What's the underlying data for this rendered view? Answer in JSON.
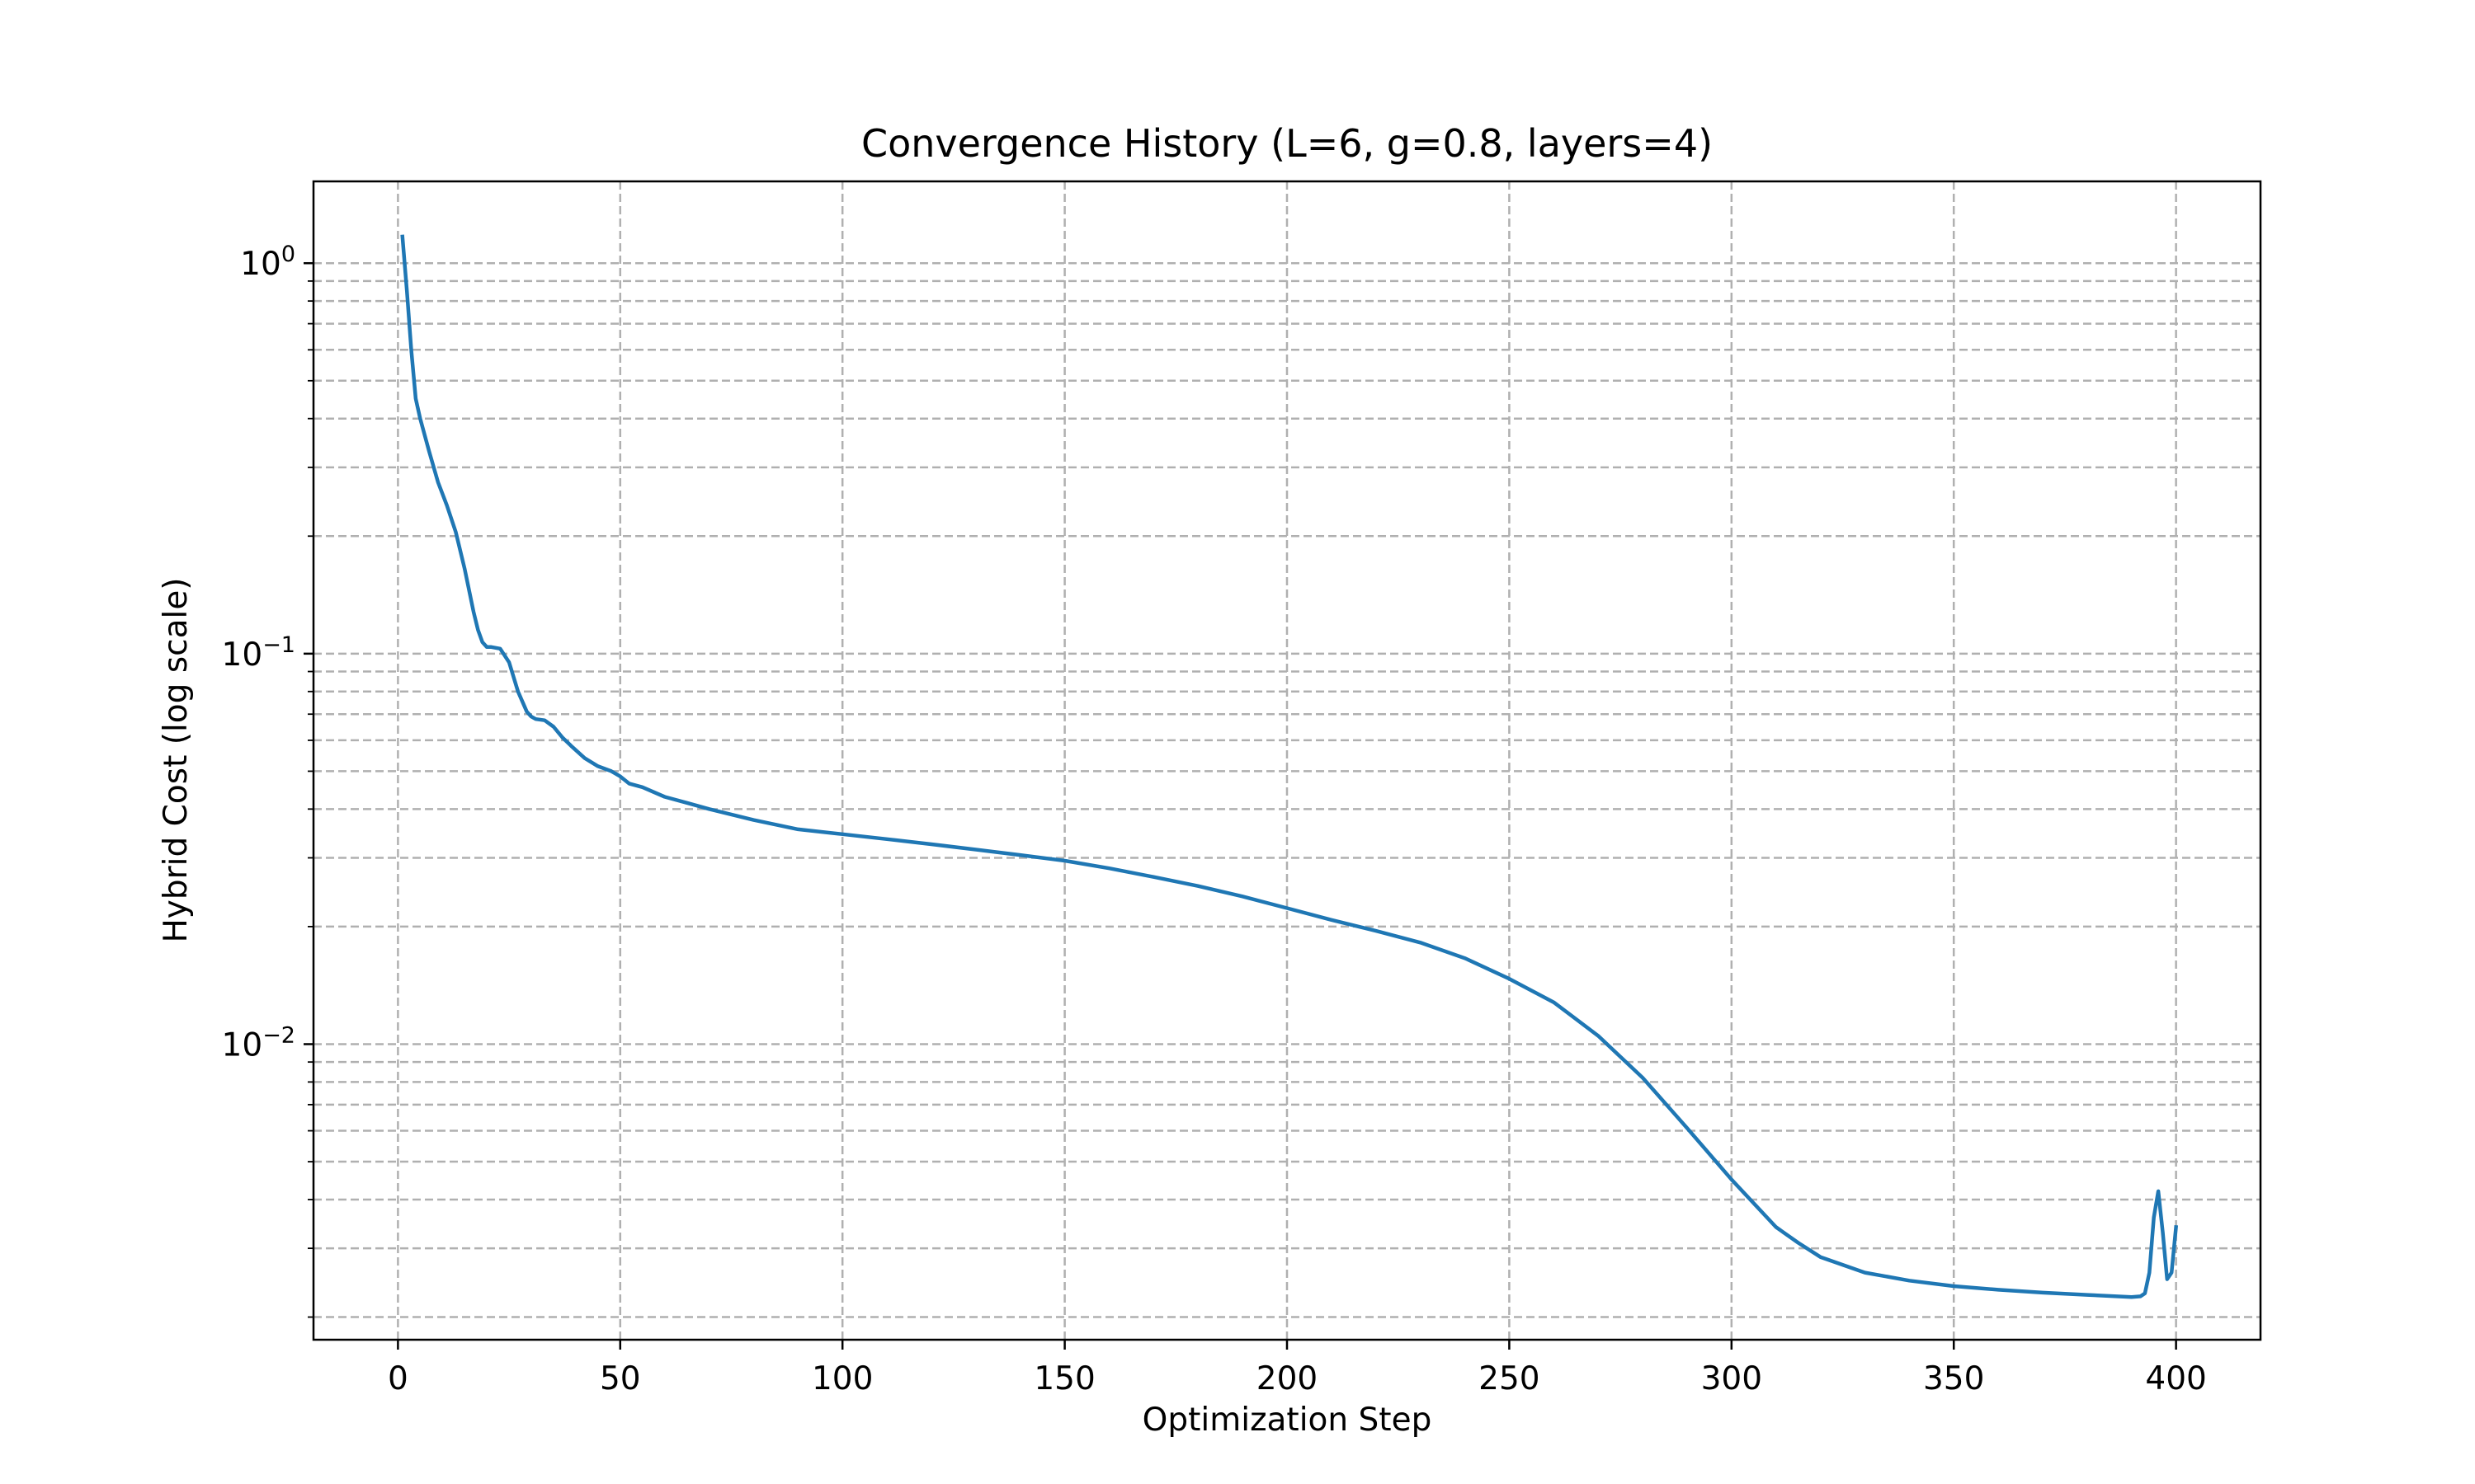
{
  "chart_data": {
    "type": "line",
    "title": "Convergence History (L=6, g=0.8, layers=4)",
    "xlabel": "Optimization Step",
    "ylabel": "Hybrid Cost (log scale)",
    "xscale": "linear",
    "yscale": "log",
    "xlim": [
      -19,
      419
    ],
    "ylim": [
      0.00175,
      1.62
    ],
    "x_ticks": [
      0,
      50,
      100,
      150,
      200,
      250,
      300,
      350,
      400
    ],
    "x_tick_labels": [
      "0",
      "50",
      "100",
      "150",
      "200",
      "250",
      "300",
      "350",
      "400"
    ],
    "y_major_ticks": [
      {
        "value": 1,
        "base": "10",
        "exp": "0"
      },
      {
        "value": 0.1,
        "base": "10",
        "exp": "−1"
      },
      {
        "value": 0.01,
        "base": "10",
        "exp": "−2"
      }
    ],
    "y_minor_ticks": [
      0.9,
      0.8,
      0.7,
      0.6,
      0.5,
      0.4,
      0.3,
      0.2,
      0.09,
      0.08,
      0.07,
      0.06,
      0.05,
      0.04,
      0.03,
      0.02,
      0.009,
      0.008,
      0.007,
      0.006,
      0.005,
      0.004,
      0.003,
      0.002
    ],
    "grid": true,
    "grid_style": "dashed",
    "legend": "none",
    "series": [
      {
        "color": "#1f77b4",
        "x": [
          1,
          2,
          3,
          4,
          5,
          7,
          9,
          11,
          13,
          15,
          17,
          18,
          19,
          20,
          21,
          23,
          25,
          27,
          29,
          30,
          31,
          33,
          35,
          37,
          39,
          42,
          45,
          48,
          50,
          52,
          55,
          60,
          65,
          70,
          80,
          90,
          100,
          110,
          120,
          130,
          140,
          150,
          160,
          170,
          180,
          190,
          200,
          210,
          220,
          230,
          240,
          250,
          260,
          270,
          280,
          290,
          300,
          310,
          315,
          320,
          330,
          340,
          350,
          360,
          370,
          380,
          390,
          392,
          393,
          394,
          395,
          396,
          397,
          398,
          399,
          400
        ],
        "y": [
          1.17,
          0.85,
          0.6,
          0.45,
          0.4,
          0.33,
          0.275,
          0.24,
          0.205,
          0.165,
          0.128,
          0.115,
          0.107,
          0.104,
          0.104,
          0.103,
          0.095,
          0.08,
          0.071,
          0.069,
          0.068,
          0.0675,
          0.065,
          0.061,
          0.058,
          0.054,
          0.0515,
          0.05,
          0.0485,
          0.0465,
          0.0455,
          0.043,
          0.0415,
          0.04,
          0.0375,
          0.0355,
          0.0345,
          0.0335,
          0.0325,
          0.0315,
          0.0305,
          0.0295,
          0.0282,
          0.0268,
          0.0254,
          0.0239,
          0.0223,
          0.0208,
          0.0195,
          0.0182,
          0.0166,
          0.0147,
          0.0128,
          0.0105,
          0.0082,
          0.0061,
          0.0045,
          0.0034,
          0.0031,
          0.00285,
          0.0026,
          0.00248,
          0.0024,
          0.00235,
          0.00231,
          0.00228,
          0.00225,
          0.00226,
          0.0023,
          0.0026,
          0.0036,
          0.0042,
          0.0033,
          0.0025,
          0.0026,
          0.0034
        ]
      }
    ]
  }
}
